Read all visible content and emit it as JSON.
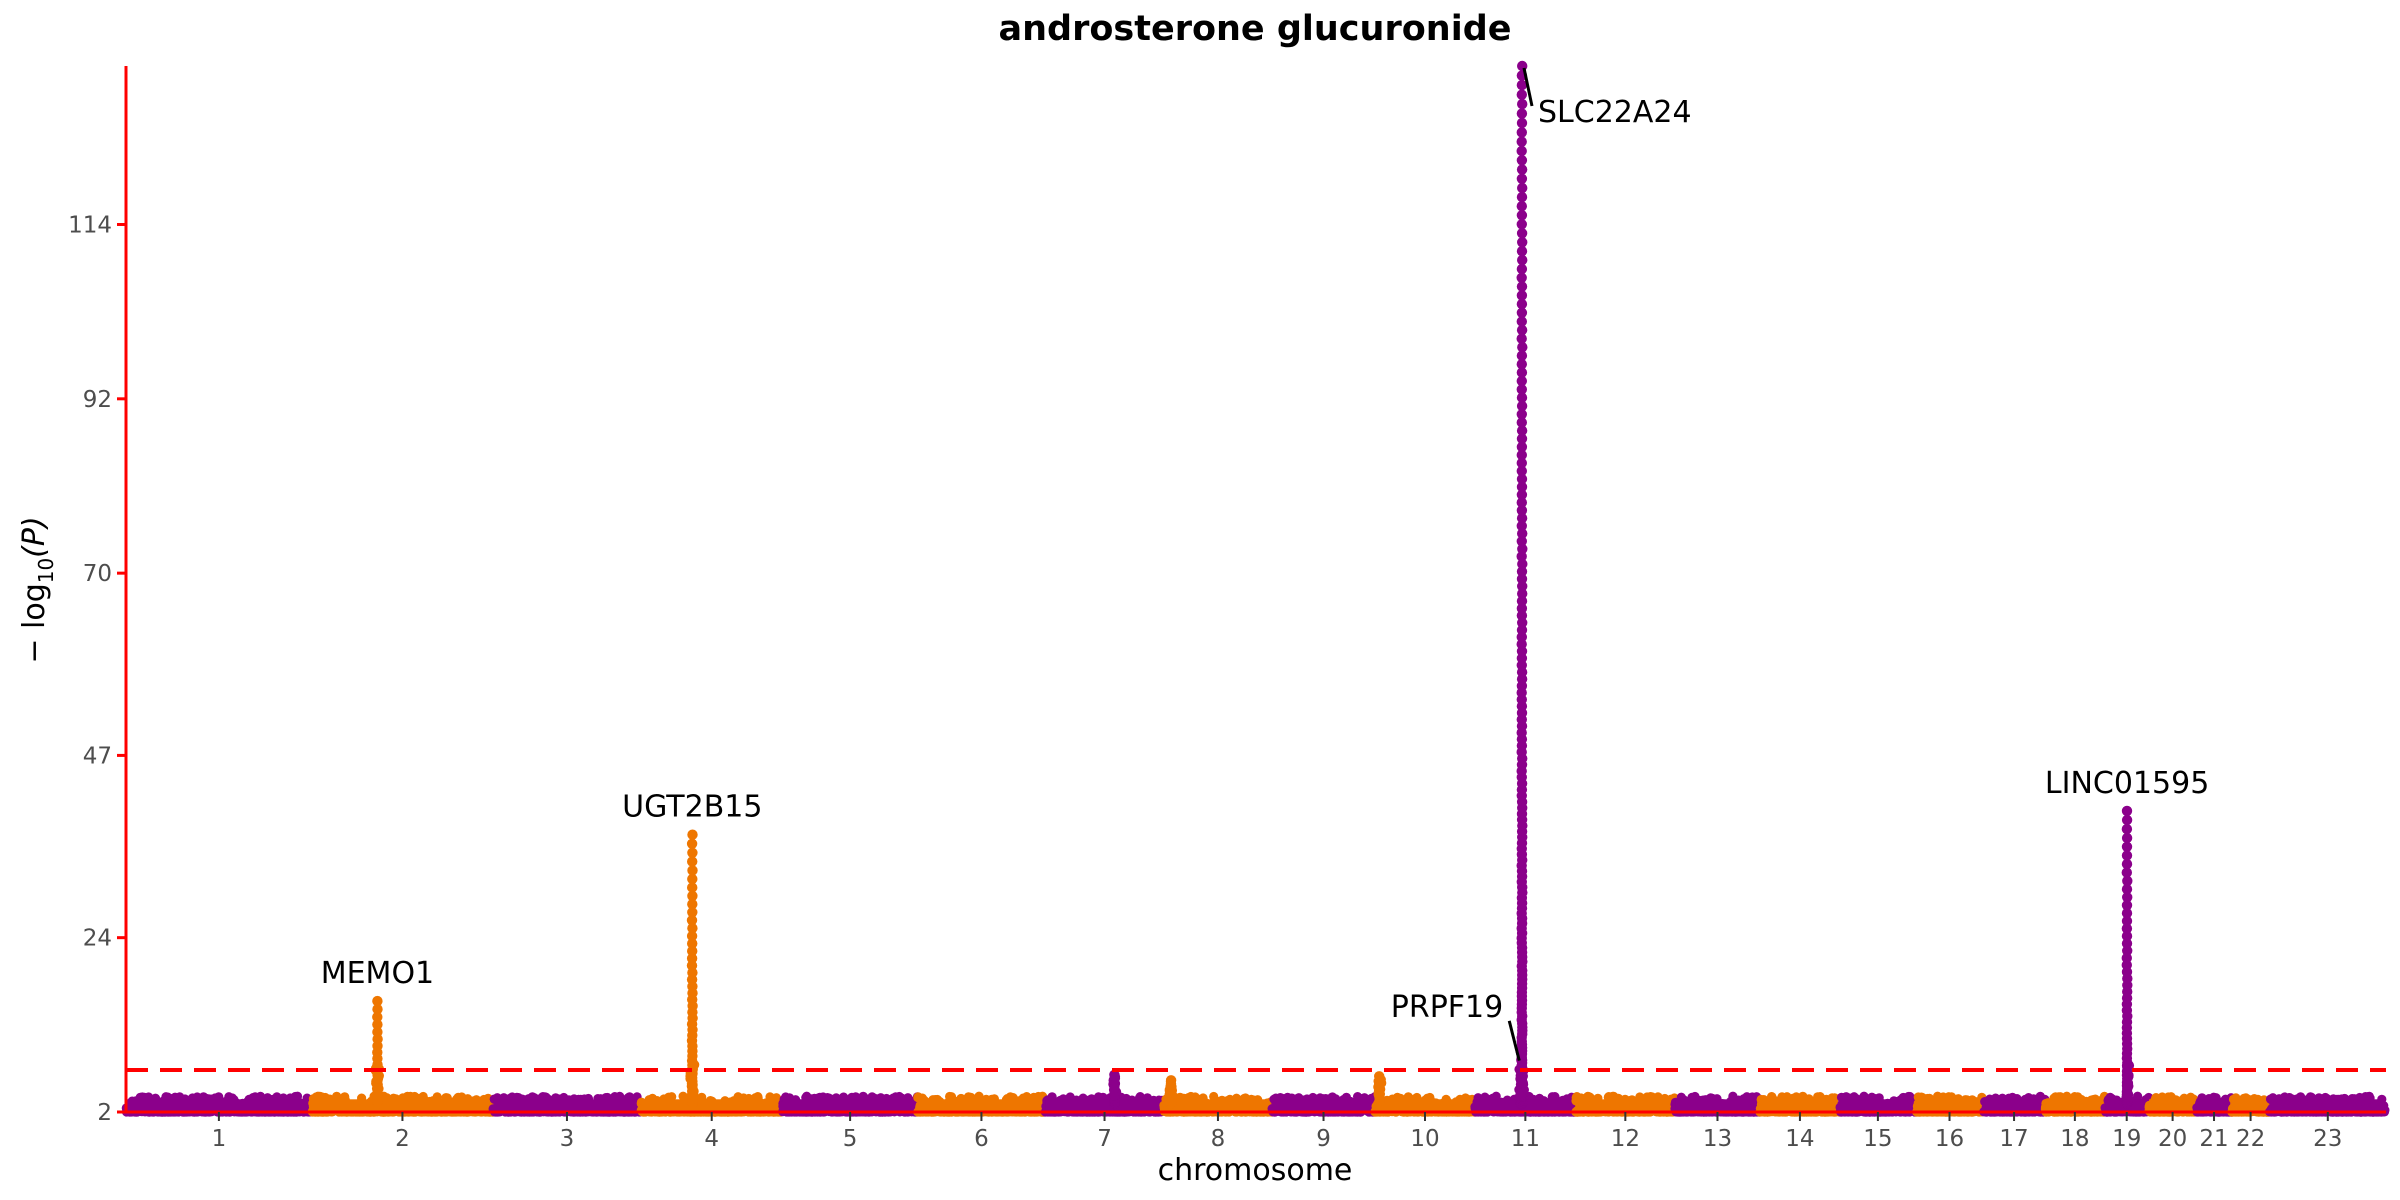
{
  "chart_data": {
    "type": "scatter",
    "title": "androsterone glucuronide",
    "xlabel": "chromosome",
    "ylabel": "−log10(P)",
    "ylabel_parts": {
      "prefix": "− log",
      "sub": "10",
      "suffix": "(P)"
    },
    "ylim": [
      2,
      134
    ],
    "yticks": [
      2,
      24,
      47,
      70,
      92,
      114
    ],
    "significance_threshold": 7.3,
    "grid": false,
    "colors": {
      "odd": "#8b008b",
      "even": "#ee7600",
      "threshold": "#ff0000",
      "axis": "#ff0000"
    },
    "chromosomes": [
      "1",
      "2",
      "3",
      "4",
      "5",
      "6",
      "7",
      "8",
      "9",
      "10",
      "11",
      "12",
      "13",
      "14",
      "15",
      "16",
      "17",
      "18",
      "19",
      "20",
      "21",
      "22",
      "23"
    ],
    "chromosome_lengths_mb": [
      249,
      243,
      198,
      190,
      181,
      171,
      159,
      145,
      138,
      134,
      135,
      133,
      114,
      107,
      102,
      90,
      83,
      80,
      59,
      64,
      47,
      51,
      156
    ],
    "background_max": 4.0,
    "peaks": [
      {
        "chr": "2",
        "pos_mb": 88,
        "max": 16,
        "label": "MEMO1"
      },
      {
        "chr": "4",
        "pos_mb": 69,
        "max": 37,
        "label": "UGT2B15"
      },
      {
        "chr": "7",
        "pos_mb": 93,
        "max": 6.7,
        "label": ""
      },
      {
        "chr": "8",
        "pos_mb": 10,
        "max": 6.0,
        "label": ""
      },
      {
        "chr": "10",
        "pos_mb": 6,
        "max": 6.5,
        "label": ""
      },
      {
        "chr": "11",
        "pos_mb": 62,
        "max": 9.5,
        "label": "PRPF19"
      },
      {
        "chr": "11",
        "pos_mb": 63,
        "max": 134,
        "label": "SLC22A24"
      },
      {
        "chr": "19",
        "pos_mb": 30,
        "max": 40,
        "label": "LINC01595"
      }
    ],
    "legend": "none"
  }
}
